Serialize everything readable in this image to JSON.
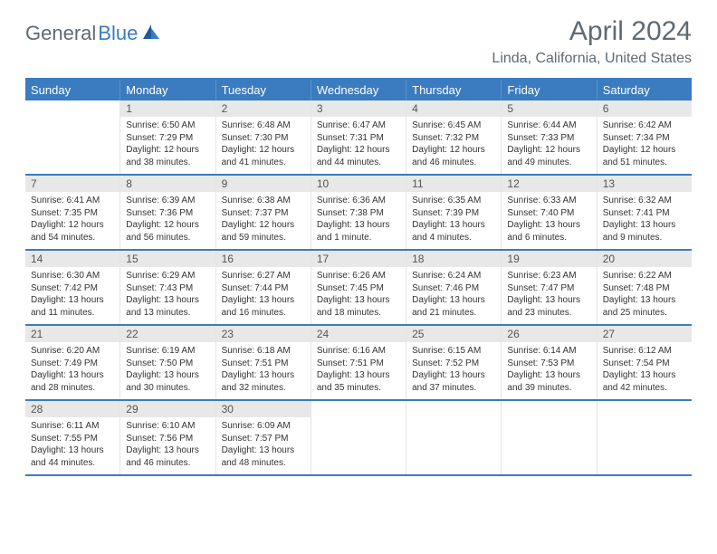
{
  "logo": {
    "part1": "General",
    "part2": "Blue"
  },
  "title": "April 2024",
  "location": "Linda, California, United States",
  "colors": {
    "accent": "#3b7bbf",
    "header_text": "#ffffff",
    "title_text": "#5f6a72",
    "daynum_bg": "#e8e8e8",
    "cell_text": "#333333"
  },
  "day_headers": [
    "Sunday",
    "Monday",
    "Tuesday",
    "Wednesday",
    "Thursday",
    "Friday",
    "Saturday"
  ],
  "weeks": [
    [
      {
        "num": "",
        "sunrise": "",
        "sunset": "",
        "daylight": ""
      },
      {
        "num": "1",
        "sunrise": "Sunrise: 6:50 AM",
        "sunset": "Sunset: 7:29 PM",
        "daylight": "Daylight: 12 hours and 38 minutes."
      },
      {
        "num": "2",
        "sunrise": "Sunrise: 6:48 AM",
        "sunset": "Sunset: 7:30 PM",
        "daylight": "Daylight: 12 hours and 41 minutes."
      },
      {
        "num": "3",
        "sunrise": "Sunrise: 6:47 AM",
        "sunset": "Sunset: 7:31 PM",
        "daylight": "Daylight: 12 hours and 44 minutes."
      },
      {
        "num": "4",
        "sunrise": "Sunrise: 6:45 AM",
        "sunset": "Sunset: 7:32 PM",
        "daylight": "Daylight: 12 hours and 46 minutes."
      },
      {
        "num": "5",
        "sunrise": "Sunrise: 6:44 AM",
        "sunset": "Sunset: 7:33 PM",
        "daylight": "Daylight: 12 hours and 49 minutes."
      },
      {
        "num": "6",
        "sunrise": "Sunrise: 6:42 AM",
        "sunset": "Sunset: 7:34 PM",
        "daylight": "Daylight: 12 hours and 51 minutes."
      }
    ],
    [
      {
        "num": "7",
        "sunrise": "Sunrise: 6:41 AM",
        "sunset": "Sunset: 7:35 PM",
        "daylight": "Daylight: 12 hours and 54 minutes."
      },
      {
        "num": "8",
        "sunrise": "Sunrise: 6:39 AM",
        "sunset": "Sunset: 7:36 PM",
        "daylight": "Daylight: 12 hours and 56 minutes."
      },
      {
        "num": "9",
        "sunrise": "Sunrise: 6:38 AM",
        "sunset": "Sunset: 7:37 PM",
        "daylight": "Daylight: 12 hours and 59 minutes."
      },
      {
        "num": "10",
        "sunrise": "Sunrise: 6:36 AM",
        "sunset": "Sunset: 7:38 PM",
        "daylight": "Daylight: 13 hours and 1 minute."
      },
      {
        "num": "11",
        "sunrise": "Sunrise: 6:35 AM",
        "sunset": "Sunset: 7:39 PM",
        "daylight": "Daylight: 13 hours and 4 minutes."
      },
      {
        "num": "12",
        "sunrise": "Sunrise: 6:33 AM",
        "sunset": "Sunset: 7:40 PM",
        "daylight": "Daylight: 13 hours and 6 minutes."
      },
      {
        "num": "13",
        "sunrise": "Sunrise: 6:32 AM",
        "sunset": "Sunset: 7:41 PM",
        "daylight": "Daylight: 13 hours and 9 minutes."
      }
    ],
    [
      {
        "num": "14",
        "sunrise": "Sunrise: 6:30 AM",
        "sunset": "Sunset: 7:42 PM",
        "daylight": "Daylight: 13 hours and 11 minutes."
      },
      {
        "num": "15",
        "sunrise": "Sunrise: 6:29 AM",
        "sunset": "Sunset: 7:43 PM",
        "daylight": "Daylight: 13 hours and 13 minutes."
      },
      {
        "num": "16",
        "sunrise": "Sunrise: 6:27 AM",
        "sunset": "Sunset: 7:44 PM",
        "daylight": "Daylight: 13 hours and 16 minutes."
      },
      {
        "num": "17",
        "sunrise": "Sunrise: 6:26 AM",
        "sunset": "Sunset: 7:45 PM",
        "daylight": "Daylight: 13 hours and 18 minutes."
      },
      {
        "num": "18",
        "sunrise": "Sunrise: 6:24 AM",
        "sunset": "Sunset: 7:46 PM",
        "daylight": "Daylight: 13 hours and 21 minutes."
      },
      {
        "num": "19",
        "sunrise": "Sunrise: 6:23 AM",
        "sunset": "Sunset: 7:47 PM",
        "daylight": "Daylight: 13 hours and 23 minutes."
      },
      {
        "num": "20",
        "sunrise": "Sunrise: 6:22 AM",
        "sunset": "Sunset: 7:48 PM",
        "daylight": "Daylight: 13 hours and 25 minutes."
      }
    ],
    [
      {
        "num": "21",
        "sunrise": "Sunrise: 6:20 AM",
        "sunset": "Sunset: 7:49 PM",
        "daylight": "Daylight: 13 hours and 28 minutes."
      },
      {
        "num": "22",
        "sunrise": "Sunrise: 6:19 AM",
        "sunset": "Sunset: 7:50 PM",
        "daylight": "Daylight: 13 hours and 30 minutes."
      },
      {
        "num": "23",
        "sunrise": "Sunrise: 6:18 AM",
        "sunset": "Sunset: 7:51 PM",
        "daylight": "Daylight: 13 hours and 32 minutes."
      },
      {
        "num": "24",
        "sunrise": "Sunrise: 6:16 AM",
        "sunset": "Sunset: 7:51 PM",
        "daylight": "Daylight: 13 hours and 35 minutes."
      },
      {
        "num": "25",
        "sunrise": "Sunrise: 6:15 AM",
        "sunset": "Sunset: 7:52 PM",
        "daylight": "Daylight: 13 hours and 37 minutes."
      },
      {
        "num": "26",
        "sunrise": "Sunrise: 6:14 AM",
        "sunset": "Sunset: 7:53 PM",
        "daylight": "Daylight: 13 hours and 39 minutes."
      },
      {
        "num": "27",
        "sunrise": "Sunrise: 6:12 AM",
        "sunset": "Sunset: 7:54 PM",
        "daylight": "Daylight: 13 hours and 42 minutes."
      }
    ],
    [
      {
        "num": "28",
        "sunrise": "Sunrise: 6:11 AM",
        "sunset": "Sunset: 7:55 PM",
        "daylight": "Daylight: 13 hours and 44 minutes."
      },
      {
        "num": "29",
        "sunrise": "Sunrise: 6:10 AM",
        "sunset": "Sunset: 7:56 PM",
        "daylight": "Daylight: 13 hours and 46 minutes."
      },
      {
        "num": "30",
        "sunrise": "Sunrise: 6:09 AM",
        "sunset": "Sunset: 7:57 PM",
        "daylight": "Daylight: 13 hours and 48 minutes."
      },
      {
        "num": "",
        "sunrise": "",
        "sunset": "",
        "daylight": ""
      },
      {
        "num": "",
        "sunrise": "",
        "sunset": "",
        "daylight": ""
      },
      {
        "num": "",
        "sunrise": "",
        "sunset": "",
        "daylight": ""
      },
      {
        "num": "",
        "sunrise": "",
        "sunset": "",
        "daylight": ""
      }
    ]
  ]
}
